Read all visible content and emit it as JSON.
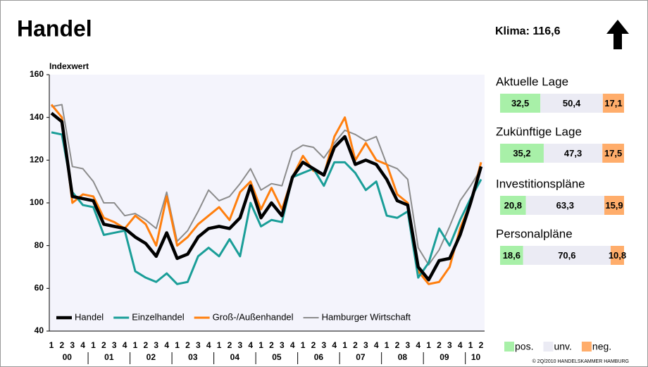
{
  "title": "Handel",
  "klima": "Klima: 116,6",
  "chart_data": {
    "type": "line",
    "y_label": "Indexwert",
    "categories": [
      "1",
      "2",
      "3",
      "4",
      "1",
      "2",
      "3",
      "4",
      "1",
      "2",
      "3",
      "4",
      "1",
      "2",
      "3",
      "4",
      "1",
      "2",
      "3",
      "4",
      "1",
      "2",
      "3",
      "4",
      "1",
      "2",
      "3",
      "4",
      "1",
      "2",
      "3",
      "4",
      "1",
      "2",
      "3",
      "4",
      "1",
      "2",
      "3",
      "4",
      "1",
      "2"
    ],
    "year_labels": [
      "00",
      "01",
      "02",
      "03",
      "04",
      "05",
      "06",
      "07",
      "08",
      "09",
      "10"
    ],
    "ylim": [
      40,
      160
    ],
    "yticks": [
      40,
      60,
      80,
      100,
      120,
      140,
      160
    ],
    "legend": "lower left",
    "series": [
      {
        "name": "Handel",
        "color": "#000000",
        "line_width": 4.5,
        "values": [
          142,
          138,
          103,
          102,
          101,
          90,
          89,
          88,
          84,
          81,
          75,
          86,
          74,
          76,
          84,
          88,
          89,
          88,
          93,
          108,
          93,
          100,
          94,
          112,
          119,
          116,
          113,
          126,
          131,
          118,
          120,
          118,
          111,
          101,
          99,
          70,
          64,
          73,
          74,
          85,
          100,
          117
        ]
      },
      {
        "name": "Einzelhandel",
        "color": "#1a9e98",
        "line_width": 3,
        "values": [
          133,
          132,
          105,
          99,
          98,
          85,
          86,
          87,
          68,
          65,
          63,
          67,
          62,
          63,
          75,
          79,
          75,
          83,
          75,
          100,
          89,
          92,
          91,
          112,
          114,
          116,
          108,
          119,
          119,
          114,
          106,
          110,
          94,
          93,
          96,
          65,
          72,
          88,
          80,
          92,
          102,
          111
        ]
      },
      {
        "name": "Groß-/Außenhandel",
        "color": "#ff7f0e",
        "line_width": 3,
        "values": [
          146,
          140,
          100,
          104,
          103,
          93,
          91,
          88,
          94,
          90,
          80,
          103,
          80,
          84,
          90,
          94,
          98,
          92,
          105,
          110,
          97,
          107,
          97,
          112,
          122,
          115,
          113,
          131,
          140,
          120,
          128,
          120,
          118,
          104,
          100,
          68,
          62,
          63,
          70,
          88,
          100,
          119
        ]
      },
      {
        "name": "Hamburger Wirtschaft",
        "color": "#8c8c8c",
        "line_width": 2,
        "values": [
          145,
          146,
          117,
          116,
          110,
          100,
          100,
          94,
          95,
          92,
          88,
          105,
          82,
          87,
          96,
          106,
          101,
          103,
          109,
          116,
          106,
          109,
          108,
          124,
          127,
          126,
          121,
          128,
          134,
          132,
          129,
          131,
          118,
          116,
          111,
          79,
          71,
          78,
          89,
          101,
          108,
          116
        ]
      }
    ]
  },
  "panel": {
    "colors": [
      "#a8f0a8",
      "#ebebf4",
      "#ffad6b"
    ],
    "legend": [
      "pos.",
      "unv.",
      "neg."
    ],
    "items": [
      {
        "title": "Aktuelle Lage",
        "values": [
          32.5,
          50.4,
          17.1
        ],
        "value_labels": [
          "32,5",
          "50,4",
          "17,1"
        ]
      },
      {
        "title": "Zukünftige Lage",
        "values": [
          35.2,
          47.3,
          17.5
        ],
        "value_labels": [
          "35,2",
          "47,3",
          "17,5"
        ]
      },
      {
        "title": "Investitionspläne",
        "values": [
          20.8,
          63.3,
          15.9
        ],
        "value_labels": [
          "20,8",
          "63,3",
          "15,9"
        ]
      },
      {
        "title": "Personalpläne",
        "values": [
          18.6,
          70.6,
          10.8
        ],
        "value_labels": [
          "18,6",
          "70,6",
          "10,8"
        ]
      }
    ]
  },
  "credit": "© 2Q/2010 HANDELSKAMMER HAMBURG"
}
